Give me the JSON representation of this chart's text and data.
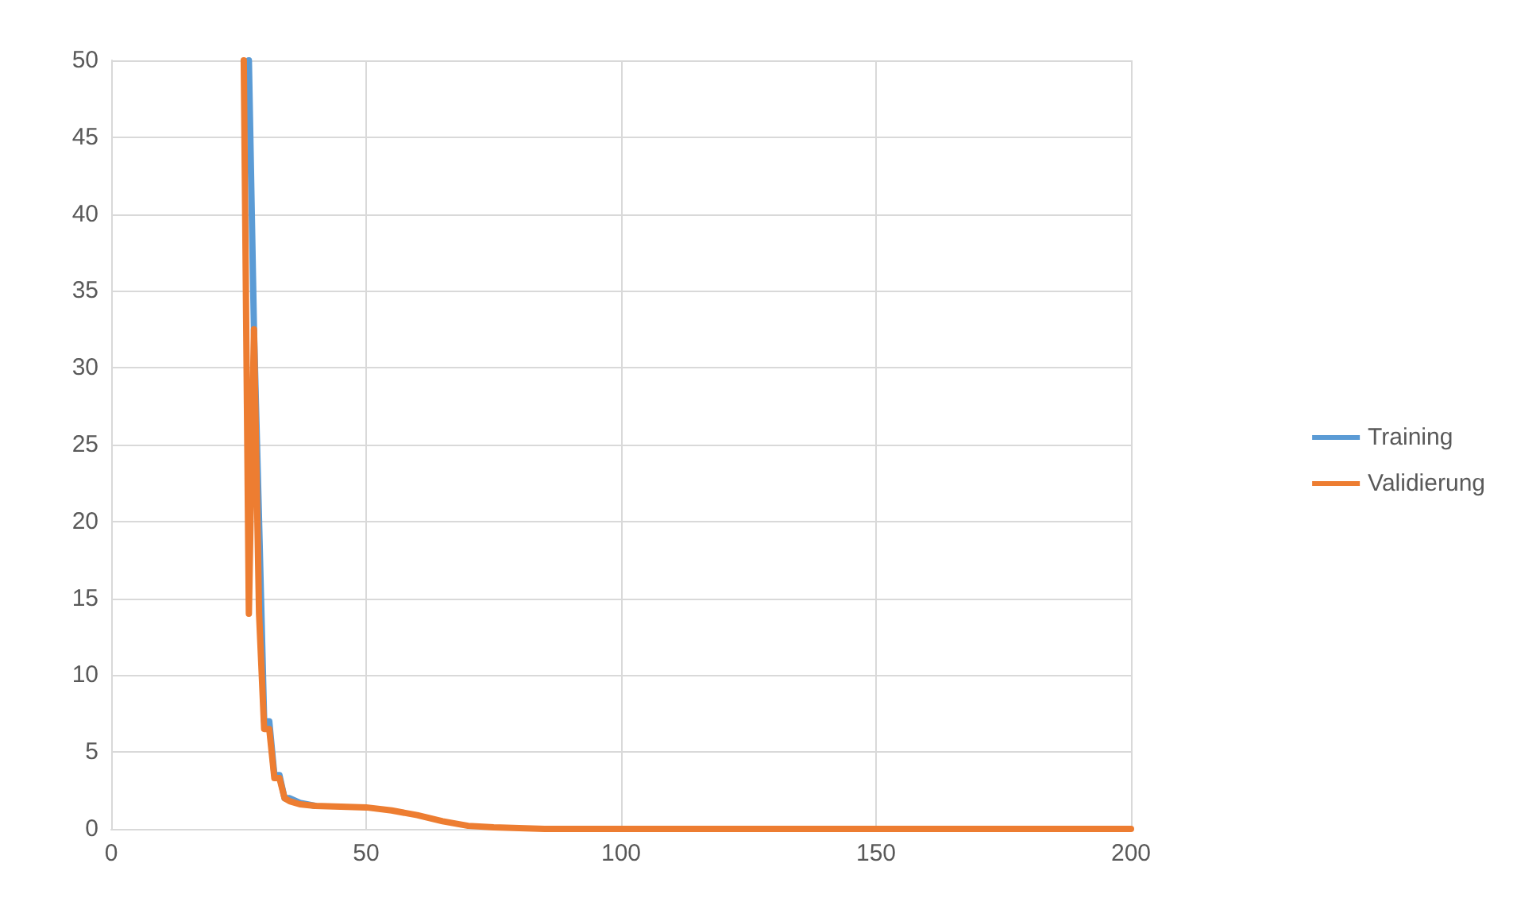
{
  "chart_data": {
    "type": "line",
    "x": [
      26,
      27,
      28,
      29,
      30,
      31,
      32,
      33,
      34,
      35,
      37,
      40,
      50,
      55,
      60,
      65,
      70,
      75,
      85,
      200
    ],
    "series": [
      {
        "name": "Training",
        "color": "#5b9bd5",
        "values": [
          null,
          50,
          32.5,
          20,
          7,
          7,
          3.5,
          3.5,
          2,
          2,
          1.7,
          1.5,
          null,
          null,
          null,
          null,
          null,
          null,
          null,
          null
        ]
      },
      {
        "name": "Validierung",
        "color": "#ed7d31",
        "values": [
          50,
          14,
          32.5,
          14,
          6.5,
          6.5,
          3.3,
          3.3,
          2,
          1.8,
          1.6,
          1.5,
          1.4,
          1.2,
          0.9,
          0.5,
          0.2,
          0.1,
          0,
          0
        ]
      }
    ],
    "xlim": [
      0,
      200
    ],
    "xticks": [
      0,
      50,
      100,
      150,
      200
    ],
    "ylim": [
      0,
      50
    ],
    "yticks": [
      0,
      5,
      10,
      15,
      20,
      25,
      30,
      35,
      40,
      45,
      50
    ],
    "grid": true,
    "legend": "right",
    "marker": "none",
    "line_style": "solid"
  }
}
